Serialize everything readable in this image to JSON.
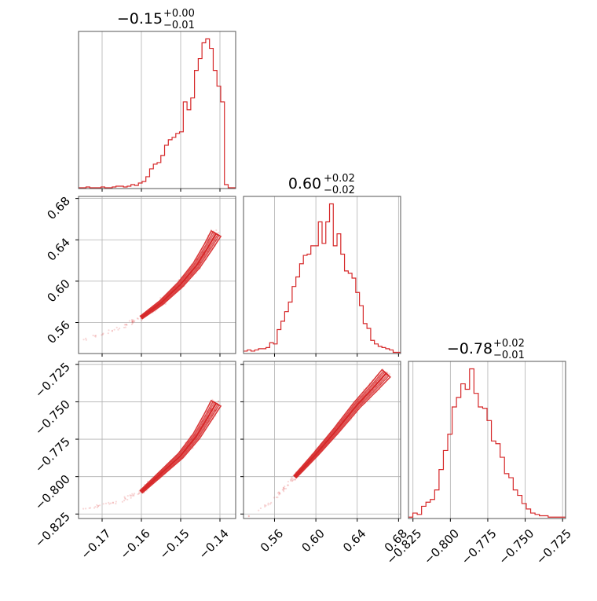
{
  "chart_data": {
    "type": "corner",
    "color": "#d62728",
    "parameters": [
      {
        "title_main": "−0.15",
        "title_plus": "+0.00",
        "title_minus": "−0.01",
        "range": [
          -0.176,
          -0.136
        ],
        "ticks": [
          -0.17,
          -0.16,
          -0.15,
          -0.14
        ],
        "tick_labels": [
          "−0.17",
          "−0.16",
          "−0.15",
          "−0.14"
        ]
      },
      {
        "title_main": "0.60",
        "title_plus": "+0.02",
        "title_minus": "−0.02",
        "range": [
          0.53,
          0.682
        ],
        "ticks": [
          0.56,
          0.6,
          0.64,
          0.68
        ],
        "tick_labels": [
          "0.56",
          "0.60",
          "0.64",
          "0.68"
        ]
      },
      {
        "title_main": "−0.78",
        "title_plus": "+0.02",
        "title_minus": "−0.01",
        "range": [
          -0.828,
          -0.723
        ],
        "ticks": [
          -0.825,
          -0.8,
          -0.775,
          -0.75,
          -0.725
        ],
        "tick_labels": [
          "−0.825",
          "−0.800",
          "−0.775",
          "−0.750",
          "−0.725"
        ]
      }
    ],
    "histograms": [
      {
        "param": 0,
        "edges_range": [
          -0.176,
          -0.136
        ],
        "counts": [
          1,
          1,
          2,
          1,
          1,
          1,
          2,
          1,
          1,
          2,
          3,
          3,
          2,
          3,
          5,
          4,
          7,
          9,
          15,
          25,
          31,
          33,
          42,
          55,
          62,
          65,
          70,
          72,
          110,
          100,
          115,
          150,
          165,
          185,
          190,
          178,
          150,
          130,
          110,
          5,
          1,
          1
        ]
      },
      {
        "param": 1,
        "edges_range": [
          0.53,
          0.682
        ],
        "counts": [
          2,
          3,
          2,
          3,
          4,
          4,
          5,
          9,
          8,
          20,
          27,
          35,
          43,
          56,
          64,
          75,
          82,
          83,
          90,
          90,
          110,
          92,
          110,
          125,
          90,
          100,
          83,
          69,
          67,
          63,
          51,
          40,
          25,
          21,
          11,
          8,
          6,
          5,
          4,
          3,
          1,
          1
        ]
      },
      {
        "param": 2,
        "edges_range": [
          -0.828,
          -0.723
        ],
        "counts": [
          1,
          4,
          3,
          9,
          12,
          14,
          21,
          36,
          50,
          62,
          82,
          89,
          99,
          95,
          110,
          92,
          82,
          81,
          72,
          57,
          55,
          45,
          33,
          30,
          21,
          17,
          11,
          7,
          4,
          3,
          2,
          2,
          1,
          1,
          1,
          1
        ]
      }
    ],
    "pairs": [
      {
        "x_param": 0,
        "y_param": 1,
        "ridge": [
          [
            -0.175,
            0.543
          ],
          [
            -0.165,
            0.555
          ],
          [
            -0.16,
            0.565
          ],
          [
            -0.155,
            0.579
          ],
          [
            -0.15,
            0.597
          ],
          [
            -0.146,
            0.615
          ],
          [
            -0.143,
            0.633
          ],
          [
            -0.141,
            0.646
          ]
        ]
      },
      {
        "x_param": 0,
        "y_param": 2,
        "ridge": [
          [
            -0.175,
            -0.822
          ],
          [
            -0.165,
            -0.816
          ],
          [
            -0.16,
            -0.81
          ],
          [
            -0.155,
            -0.798
          ],
          [
            -0.15,
            -0.786
          ],
          [
            -0.146,
            -0.773
          ],
          [
            -0.143,
            -0.76
          ],
          [
            -0.141,
            -0.751
          ]
        ]
      },
      {
        "x_param": 1,
        "y_param": 2,
        "ridge": [
          [
            0.532,
            -0.828
          ],
          [
            0.56,
            -0.815
          ],
          [
            0.58,
            -0.8
          ],
          [
            0.6,
            -0.785
          ],
          [
            0.62,
            -0.769
          ],
          [
            0.64,
            -0.752
          ],
          [
            0.655,
            -0.741
          ],
          [
            0.668,
            -0.731
          ]
        ]
      }
    ],
    "grid": true,
    "legend": "none"
  }
}
